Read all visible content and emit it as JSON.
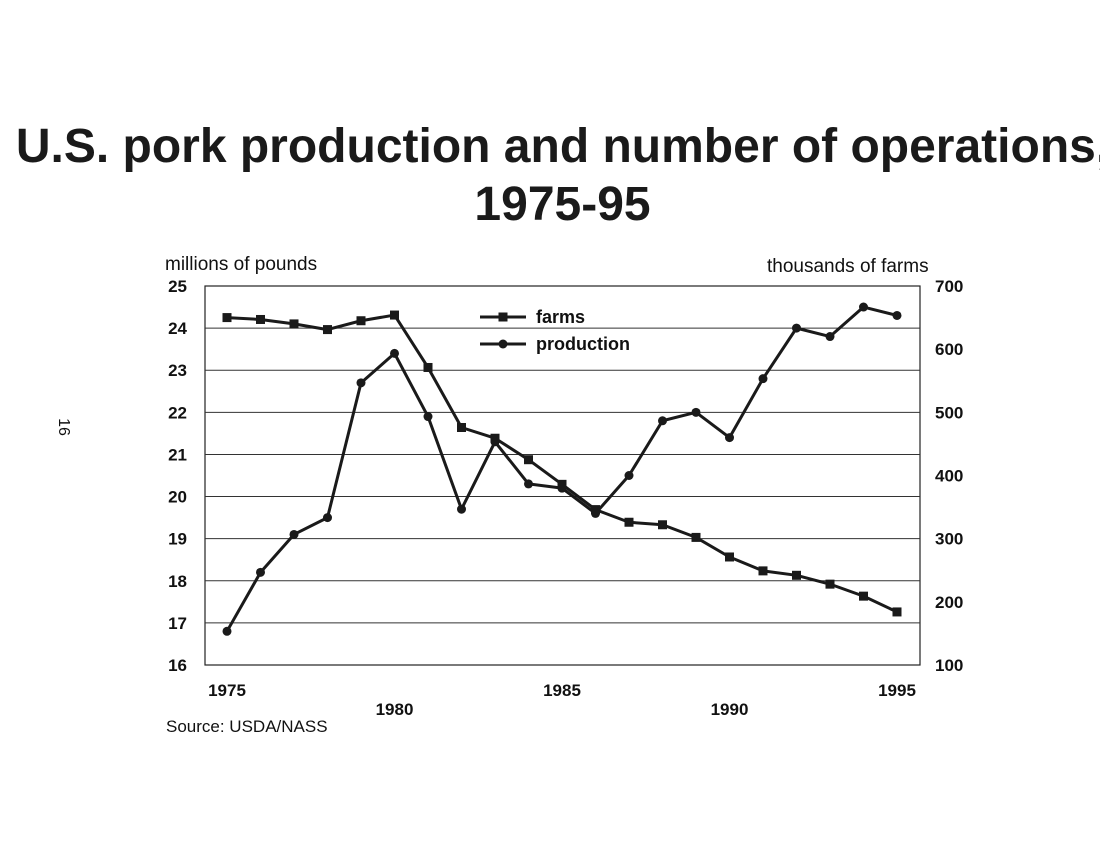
{
  "page_number": "16",
  "chart_data": {
    "type": "line",
    "title": "U.S. pork production and number of operations, 1975-95",
    "ylabel_left": "millions of pounds",
    "ylabel_right": "thousands of farms",
    "source": "Source:  USDA/NASS",
    "ylim_left": [
      16,
      25
    ],
    "ylim_right": [
      100,
      700
    ],
    "y_ticks_left": [
      "25",
      "24",
      "23",
      "22",
      "21",
      "20",
      "19",
      "18",
      "17",
      "16"
    ],
    "y_ticks_right": [
      "700",
      "600",
      "500",
      "400",
      "300",
      "200",
      "100"
    ],
    "x_ticks": [
      "1975",
      "1980",
      "1985",
      "1990",
      "1995"
    ],
    "x": [
      1975,
      1976,
      1977,
      1978,
      1979,
      1980,
      1981,
      1982,
      1983,
      1984,
      1985,
      1986,
      1987,
      1988,
      1989,
      1990,
      1991,
      1992,
      1993,
      1994,
      1995
    ],
    "grid": true,
    "legend_position": "top-center",
    "series": [
      {
        "name": "farms",
        "axis": "right",
        "marker": "square",
        "values": [
          650,
          647,
          640,
          631,
          645,
          654,
          571,
          476,
          459,
          425,
          386,
          346,
          326,
          322,
          302,
          271,
          249,
          242,
          228,
          209,
          184
        ]
      },
      {
        "name": "production",
        "axis": "left",
        "marker": "circle",
        "values": [
          16.8,
          18.2,
          19.1,
          19.5,
          22.7,
          23.4,
          21.9,
          19.7,
          21.3,
          20.3,
          20.2,
          19.6,
          20.5,
          21.8,
          22.0,
          21.4,
          22.8,
          24.0,
          23.8,
          24.5,
          24.3
        ]
      }
    ]
  }
}
